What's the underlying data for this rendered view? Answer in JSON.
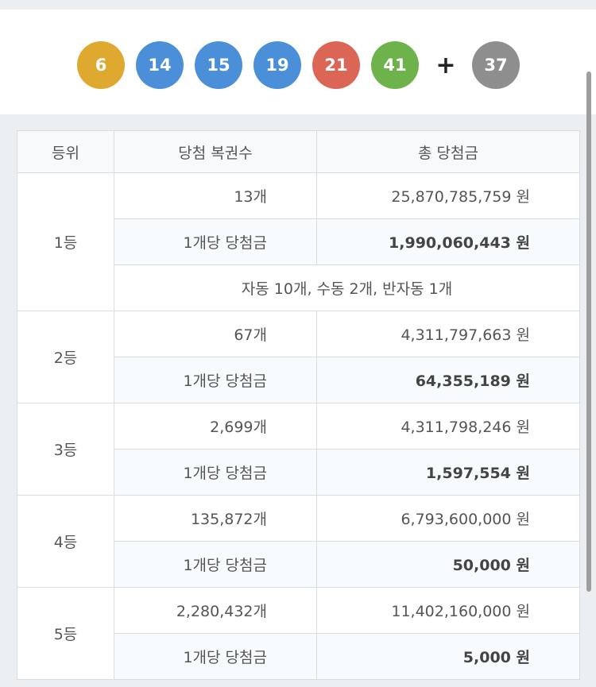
{
  "balls": [
    {
      "number": "6",
      "color": "#dfa82f"
    },
    {
      "number": "14",
      "color": "#4a8fd8"
    },
    {
      "number": "15",
      "color": "#4a8fd8"
    },
    {
      "number": "19",
      "color": "#4a8fd8"
    },
    {
      "number": "21",
      "color": "#dc6656"
    },
    {
      "number": "41",
      "color": "#6eb24b"
    }
  ],
  "plus": "+",
  "bonus": {
    "number": "37",
    "color": "#8e8e8e"
  },
  "table": {
    "headers": {
      "rank": "등위",
      "count": "당첨 복권수",
      "total": "총 당첨금"
    },
    "per_label": "1개당 당첨금",
    "rows": [
      {
        "rank": "1등",
        "count": "13개",
        "total": "25,870,785,759 원",
        "per": "1,990,060,443 원",
        "note": "자동 10개, 수동 2개, 반자동 1개"
      },
      {
        "rank": "2등",
        "count": "67개",
        "total": "4,311,797,663 원",
        "per": "64,355,189 원"
      },
      {
        "rank": "3등",
        "count": "2,699개",
        "total": "4,311,798,246 원",
        "per": "1,597,554 원"
      },
      {
        "rank": "4등",
        "count": "135,872개",
        "total": "6,793,600,000 원",
        "per": "50,000 원"
      },
      {
        "rank": "5등",
        "count": "2,280,432개",
        "total": "11,402,160,000 원",
        "per": "5,000 원"
      }
    ]
  }
}
